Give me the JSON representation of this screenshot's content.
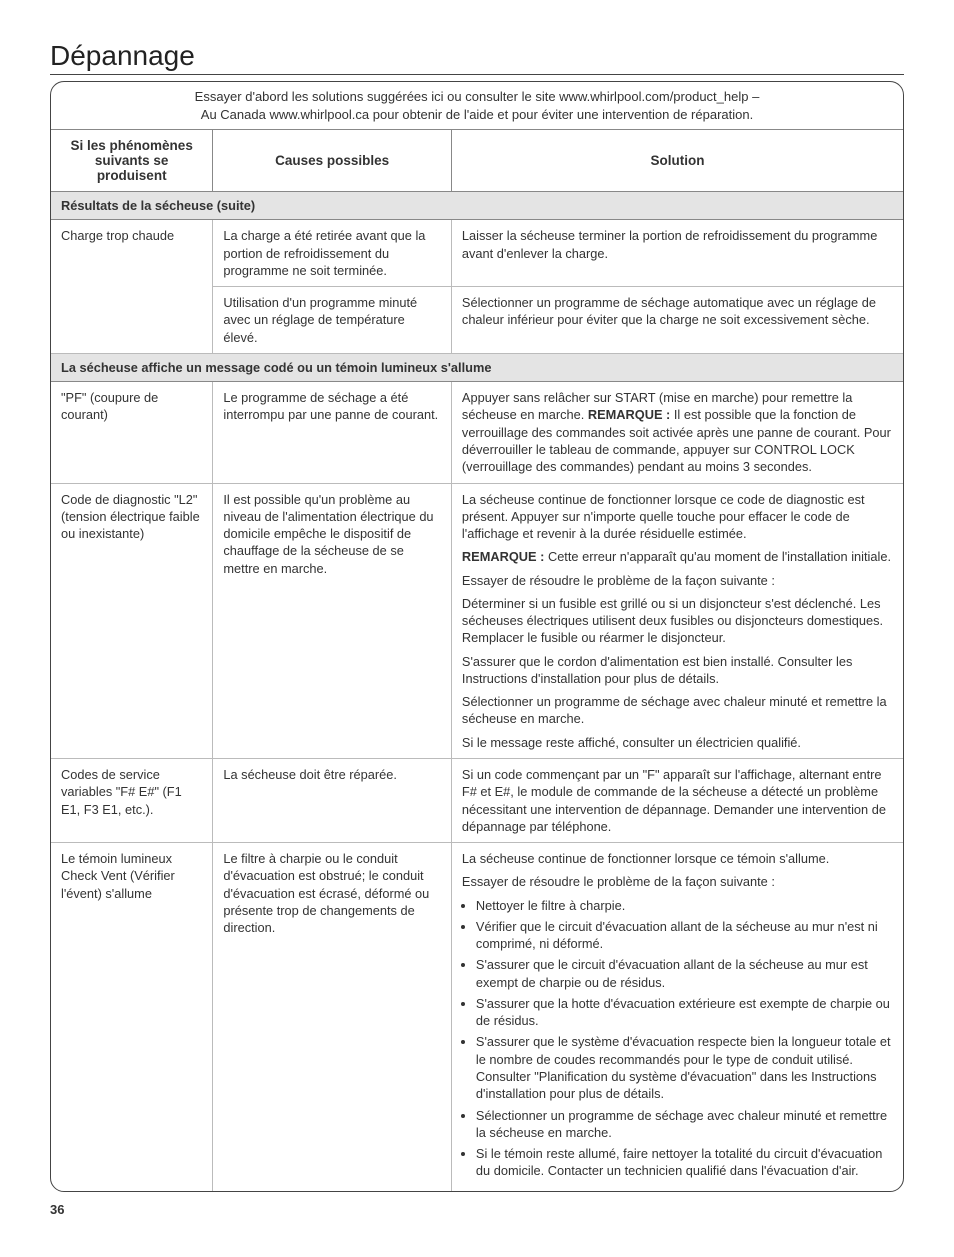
{
  "title": "Dépannage",
  "intro_line1": "Essayer d'abord les solutions suggérées ici ou consulter le site www.whirlpool.com/product_help –",
  "intro_line2": "Au Canada www.whirlpool.ca pour obtenir de l'aide et pour éviter une intervention de réparation.",
  "headers": {
    "col1": "Si les phénomènes suivants se produisent",
    "col2": "Causes possibles",
    "col3": "Solution"
  },
  "section1_title": "Résultats de la sécheuse (suite)",
  "row1": {
    "phenom": "Charge trop chaude",
    "cause": "La charge a été retirée avant que la portion de refroidissement du programme ne soit terminée.",
    "solution": "Laisser la sécheuse terminer la portion de refroidissement du programme avant d'enlever la charge."
  },
  "row2": {
    "cause": "Utilisation d'un programme minuté avec un réglage de température élevé.",
    "solution": "Sélectionner un programme de séchage automatique avec un réglage de chaleur inférieur pour éviter que la charge ne soit excessivement sèche."
  },
  "section2_title": "La sécheuse affiche un message codé ou un témoin lumineux s'allume",
  "row3": {
    "phenom": "\"PF\" (coupure de courant)",
    "cause": "Le programme de séchage a été interrompu par une panne de courant.",
    "solution_p1a": "Appuyer sans relâcher sur START (mise en marche) pour remettre la sécheuse en marche. ",
    "solution_p1b_label": "REMARQUE :",
    "solution_p1c": " Il est possible que la fonction de verrouillage des commandes soit activée après une panne de courant. Pour déverrouiller le tableau de commande, appuyer sur CONTROL LOCK (verrouillage des commandes) pendant au moins 3 secondes."
  },
  "row4": {
    "phenom": "Code de diagnostic \"L2\" (tension électrique faible ou inexistante)",
    "cause": "Il est possible qu'un problème au niveau de l'alimentation électrique du domicile empêche le dispositif de chauffage de la sécheuse de se mettre en marche.",
    "sol_p1": "La sécheuse continue de fonctionner lorsque ce code de diagnostic est présent. Appuyer sur n'importe quelle touche pour effacer le code de l'affichage et revenir à la durée résiduelle estimée.",
    "sol_p2_label": "REMARQUE :",
    "sol_p2": " Cette erreur n'apparaît qu'au moment de l'installation initiale.",
    "sol_p3": "Essayer de résoudre le problème de la façon suivante :",
    "sol_p4": "Déterminer si un fusible est grillé ou si un disjoncteur s'est déclenché. Les sécheuses électriques utilisent deux fusibles ou disjoncteurs domestiques. Remplacer le fusible ou réarmer le disjoncteur.",
    "sol_p5": "S'assurer que le cordon d'alimentation est bien installé. Consulter les Instructions d'installation pour plus de détails.",
    "sol_p6": "Sélectionner un programme de séchage avec chaleur minuté et remettre la sécheuse en marche.",
    "sol_p7": "Si le message reste affiché, consulter un électricien qualifié."
  },
  "row5": {
    "phenom": "Codes de service variables \"F# E#\" (F1 E1, F3 E1, etc.).",
    "cause": "La sécheuse doit être réparée.",
    "solution": "Si un code commençant par un \"F\" apparaît sur l'affichage, alternant entre F# et E#, le module de commande de la sécheuse a détecté un problème nécessitant une intervention de dépannage. Demander une intervention de dépannage par téléphone."
  },
  "row6": {
    "phenom": "Le témoin lumineux Check Vent (Vérifier l'évent) s'allume",
    "cause": "Le filtre à charpie ou le conduit d'évacuation est obstrué; le conduit d'évacuation est écrasé, déformé ou présente trop de changements de direction.",
    "sol_p1": "La sécheuse continue de fonctionner lorsque ce témoin s'allume.",
    "sol_p2": "Essayer de résoudre le problème de la façon suivante :",
    "b1": "Nettoyer le filtre à charpie.",
    "b2": "Vérifier que le circuit d'évacuation allant de la sécheuse au mur n'est ni comprimé, ni déformé.",
    "b3": "S'assurer que le circuit d'évacuation allant de la sécheuse au mur est exempt de charpie ou de résidus.",
    "b4": "S'assurer que la hotte d'évacuation extérieure est exempte de charpie ou de résidus.",
    "b5": "S'assurer que le système d'évacuation respecte bien la longueur totale et le nombre de coudes recommandés pour le type de conduit utilisé. Consulter \"Planification du système d'évacuation\" dans les Instructions d'installation pour plus de détails.",
    "b6": "Sélectionner un programme de séchage avec chaleur minuté et remettre la sécheuse en marche.",
    "b7": "Si le témoin reste allumé, faire nettoyer la totalité du circuit d'évacuation du domicile. Contacter un technicien qualifié dans l'évacuation d'air."
  },
  "page_number": "36"
}
